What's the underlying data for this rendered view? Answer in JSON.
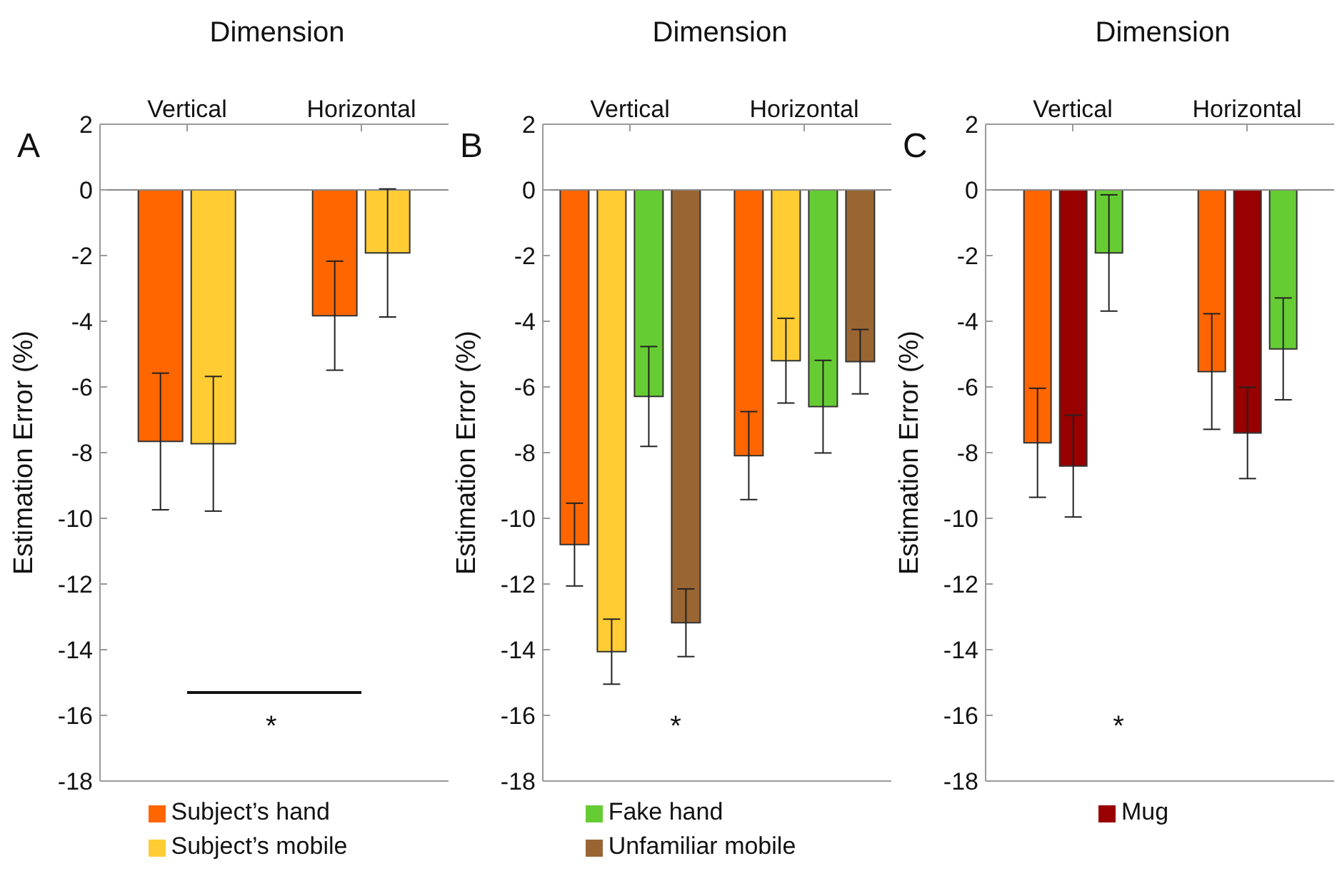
{
  "chart_data": [
    {
      "type": "bar",
      "title": "Dimension",
      "ylabel": "Estimation Error (%)",
      "categories": [
        "Vertical",
        "Horizontal"
      ],
      "ylim": [
        -18,
        2
      ],
      "yticks": [
        -18,
        -16,
        -14,
        -12,
        -10,
        -8,
        -6,
        -4,
        -2,
        0,
        2
      ],
      "legend": "bottom",
      "ref_lines": [
        {
          "axis": "y",
          "value": 0,
          "color": "#888888"
        }
      ],
      "annotations": [
        "A",
        "*"
      ],
      "series": [
        {
          "name": "Subject’s hand",
          "color": "#ff6600",
          "values": [
            -7.66,
            -3.83
          ],
          "errors": [
            2.08,
            1.66
          ]
        },
        {
          "name": "Subject’s mobile",
          "color": "#ffcc33",
          "values": [
            -7.73,
            -1.92
          ],
          "errors": [
            2.05,
            1.95
          ]
        }
      ]
    },
    {
      "type": "bar",
      "title": "Dimension",
      "ylabel": "Estimation Error (%)",
      "categories": [
        "Vertical",
        "Horizontal"
      ],
      "ylim": [
        -18,
        2
      ],
      "yticks": [
        -18,
        -16,
        -14,
        -12,
        -10,
        -8,
        -6,
        -4,
        -2,
        0,
        2
      ],
      "legend": "bottom",
      "ref_lines": [
        {
          "axis": "y",
          "value": 0,
          "color": "#888888"
        }
      ],
      "annotations": [
        "B",
        "*"
      ],
      "series": [
        {
          "color": "#ff6600",
          "values": [
            -10.8,
            -8.09
          ],
          "errors": [
            1.26,
            1.34
          ]
        },
        {
          "color": "#ffcc33",
          "values": [
            -14.06,
            -5.2
          ],
          "errors": [
            0.99,
            1.29
          ]
        },
        {
          "name": "Fake hand",
          "color": "#66cc33",
          "values": [
            -6.29,
            -6.6
          ],
          "errors": [
            1.52,
            1.41
          ]
        },
        {
          "name": "Unfamiliar mobile",
          "color": "#996633",
          "values": [
            -13.18,
            -5.23
          ],
          "errors": [
            1.03,
            0.98
          ]
        }
      ]
    },
    {
      "type": "bar",
      "title": "Dimension",
      "ylabel": "Estimation Error (%)",
      "categories": [
        "Vertical",
        "Horizontal"
      ],
      "ylim": [
        -18,
        2
      ],
      "yticks": [
        -18,
        -16,
        -14,
        -12,
        -10,
        -8,
        -6,
        -4,
        -2,
        0,
        2
      ],
      "legend": "bottom",
      "ref_lines": [
        {
          "axis": "y",
          "value": 0,
          "color": "#888888"
        }
      ],
      "annotations": [
        "C",
        "*"
      ],
      "series": [
        {
          "color": "#ff6600",
          "values": [
            -7.7,
            -5.53
          ],
          "errors": [
            1.66,
            1.76
          ]
        },
        {
          "name": "Mug",
          "color": "#990000",
          "values": [
            -8.41,
            -7.4
          ],
          "errors": [
            1.55,
            1.39
          ]
        },
        {
          "color": "#66cc33",
          "values": [
            -1.92,
            -4.84
          ],
          "errors": [
            1.77,
            1.55
          ]
        }
      ]
    }
  ]
}
